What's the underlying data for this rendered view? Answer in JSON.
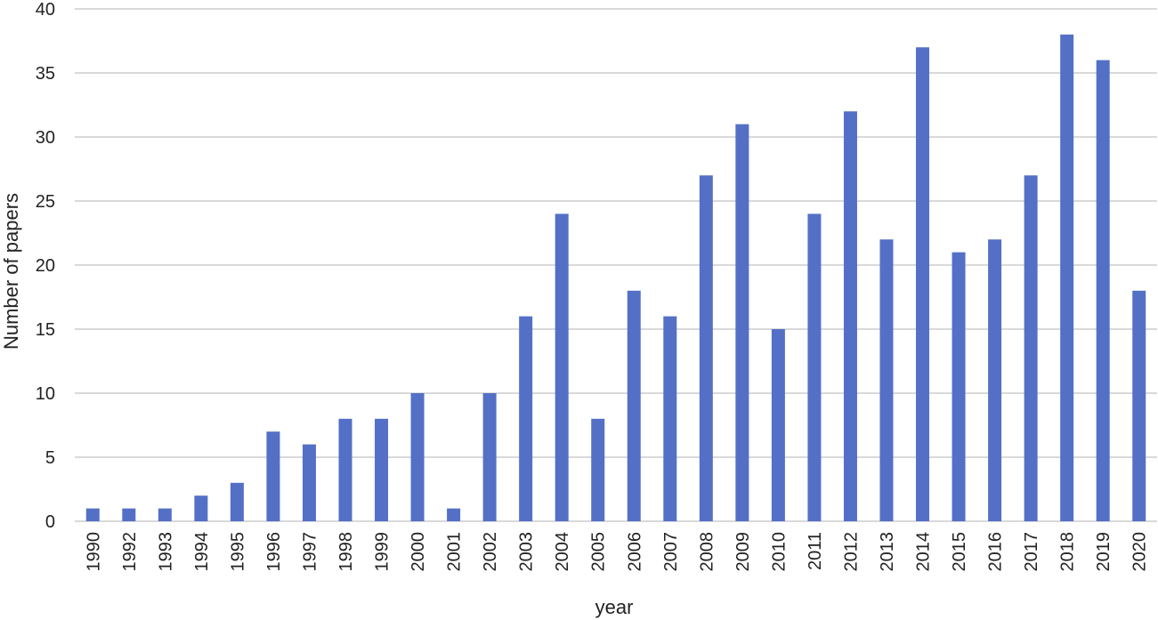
{
  "chart_data": {
    "type": "bar",
    "title": "",
    "xlabel": "year",
    "ylabel": "Number  of papers",
    "ylim": [
      0,
      40
    ],
    "yticks": [
      0,
      5,
      10,
      15,
      20,
      25,
      30,
      35,
      40
    ],
    "grid": true,
    "categories": [
      "1990",
      "1992",
      "1993",
      "1994",
      "1995",
      "1996",
      "1997",
      "1998",
      "1999",
      "2000",
      "2001",
      "2002",
      "2003",
      "2004",
      "2005",
      "2006",
      "2007",
      "2008",
      "2009",
      "2010",
      "2011",
      "2012",
      "2013",
      "2014",
      "2015",
      "2016",
      "2017",
      "2018",
      "2019",
      "2020"
    ],
    "values": [
      1,
      1,
      1,
      2,
      3,
      7,
      6,
      8,
      8,
      10,
      1,
      10,
      16,
      24,
      8,
      18,
      16,
      27,
      31,
      15,
      24,
      32,
      22,
      37,
      21,
      22,
      27,
      38,
      36,
      18
    ],
    "colors": {
      "bar": "#5470C6",
      "grid": "#D9D9D9"
    }
  }
}
